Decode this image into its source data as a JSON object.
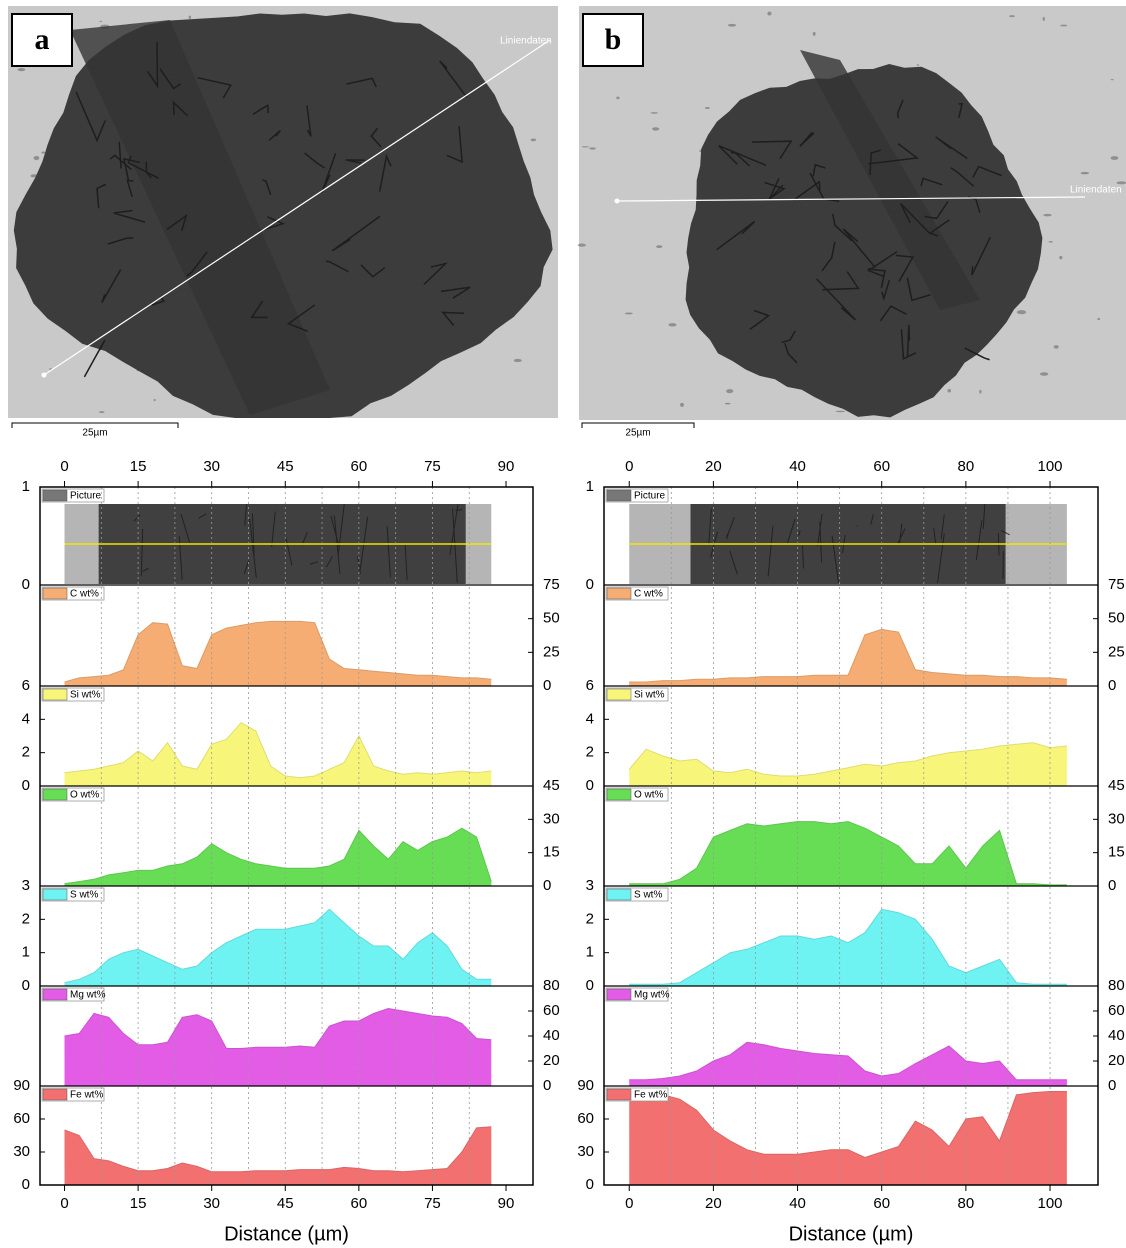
{
  "chart_data": [
    {
      "type": "area",
      "panel_label": "a",
      "line_label": "Liniendaten",
      "scale_bar": "25µm",
      "x_label": "Distance (µm)",
      "xlim": [
        -5,
        95.5
      ],
      "xticks": [
        0,
        15,
        30,
        45,
        60,
        75,
        90
      ],
      "xgrid": [
        7.5,
        15,
        22.5,
        30,
        37.5,
        45,
        52.5,
        60,
        67.5,
        75,
        82.5
      ],
      "x": [
        0,
        3,
        6,
        9,
        12,
        15,
        18,
        21,
        24,
        27,
        30,
        33,
        36,
        39,
        42,
        45,
        48,
        51,
        54,
        57,
        60,
        63,
        66,
        69,
        72,
        75,
        78,
        81,
        84,
        87
      ],
      "picture": {
        "name": "Picture",
        "ylim": [
          0,
          1
        ],
        "yticks": [
          0,
          1
        ]
      },
      "series": [
        {
          "name": "C wt%",
          "color": "#f5ad73",
          "axis": "y2",
          "ylim": [
            0,
            75
          ],
          "yticks": [
            0,
            25,
            50,
            75
          ],
          "values": [
            3,
            6,
            7,
            8,
            12,
            38,
            47,
            46,
            15,
            13,
            38,
            43,
            45,
            47,
            48,
            48,
            48,
            47,
            20,
            13,
            12,
            11,
            10,
            9,
            8,
            8,
            7,
            6,
            6,
            5
          ]
        },
        {
          "name": "Si wt%",
          "color": "#f8f67a",
          "ylim": [
            0,
            6
          ],
          "yticks": [
            0,
            2,
            4,
            6
          ],
          "values": [
            0.8,
            0.9,
            1.0,
            1.2,
            1.4,
            2.1,
            1.5,
            2.6,
            1.2,
            1.0,
            2.5,
            2.8,
            3.8,
            3.3,
            1.2,
            0.6,
            0.5,
            0.6,
            1.0,
            1.4,
            3.0,
            1.2,
            0.9,
            0.7,
            0.8,
            0.7,
            0.8,
            0.9,
            0.8,
            0.9
          ]
        },
        {
          "name": "O wt%",
          "color": "#66dd55",
          "axis": "y2",
          "ylim": [
            0,
            45
          ],
          "yticks": [
            0,
            15,
            30,
            45
          ],
          "values": [
            1,
            2,
            3,
            5,
            6,
            7,
            7,
            9,
            10,
            13,
            19,
            15,
            12,
            10,
            9,
            8,
            8,
            8,
            9,
            12,
            25,
            18,
            12,
            20,
            16,
            20,
            22,
            26,
            22,
            2
          ]
        },
        {
          "name": "S wt%",
          "color": "#6ef2f2",
          "ylim": [
            0,
            3
          ],
          "yticks": [
            0,
            1,
            2,
            3
          ],
          "values": [
            0.1,
            0.2,
            0.4,
            0.8,
            1.0,
            1.1,
            0.9,
            0.7,
            0.5,
            0.6,
            1.0,
            1.3,
            1.5,
            1.7,
            1.7,
            1.7,
            1.8,
            1.9,
            2.3,
            1.9,
            1.5,
            1.2,
            1.2,
            0.8,
            1.3,
            1.6,
            1.2,
            0.5,
            0.2,
            0.2
          ]
        },
        {
          "name": "Mg wt%",
          "color": "#e25ce6",
          "axis": "y2",
          "ylim": [
            0,
            80
          ],
          "yticks": [
            0,
            20,
            40,
            60,
            80
          ],
          "values": [
            40,
            42,
            58,
            55,
            42,
            33,
            33,
            35,
            55,
            57,
            52,
            30,
            30,
            31,
            31,
            31,
            32,
            31,
            48,
            52,
            52,
            58,
            62,
            60,
            58,
            56,
            55,
            50,
            38,
            37
          ]
        },
        {
          "name": "Fe wt%",
          "color": "#f27070",
          "ylim": [
            0,
            90
          ],
          "yticks": [
            0,
            30,
            60,
            90
          ],
          "values": [
            50,
            45,
            24,
            22,
            17,
            13,
            13,
            15,
            20,
            17,
            12,
            12,
            12,
            13,
            13,
            13,
            14,
            14,
            14,
            16,
            15,
            13,
            13,
            12,
            13,
            14,
            15,
            30,
            52,
            53
          ]
        }
      ]
    },
    {
      "type": "area",
      "panel_label": "b",
      "line_label": "Liniendaten",
      "scale_bar": "25µm",
      "x_label": "Distance (µm)",
      "xlim": [
        -6,
        111.4
      ],
      "xticks": [
        0,
        20,
        40,
        60,
        80,
        100
      ],
      "xgrid": [
        10,
        20,
        30,
        40,
        50,
        60,
        70,
        80,
        90,
        100
      ],
      "x": [
        0,
        4,
        8,
        12,
        16,
        20,
        24,
        28,
        32,
        36,
        40,
        44,
        48,
        52,
        56,
        60,
        64,
        68,
        72,
        76,
        80,
        84,
        88,
        92,
        96,
        100,
        104
      ],
      "picture": {
        "name": "Picture",
        "ylim": [
          0,
          1
        ],
        "yticks": [
          0,
          1
        ]
      },
      "series": [
        {
          "name": "C wt%",
          "color": "#f5ad73",
          "axis": "y2",
          "ylim": [
            0,
            75
          ],
          "yticks": [
            0,
            25,
            50,
            75
          ],
          "values": [
            3,
            3,
            4,
            4,
            5,
            5,
            6,
            6,
            7,
            7,
            7,
            8,
            8,
            8,
            38,
            42,
            40,
            12,
            10,
            9,
            8,
            8,
            7,
            7,
            6,
            6,
            5
          ]
        },
        {
          "name": "Si wt%",
          "color": "#f8f67a",
          "ylim": [
            0,
            6
          ],
          "yticks": [
            0,
            2,
            4,
            6
          ],
          "values": [
            1.0,
            2.2,
            1.8,
            1.5,
            1.6,
            0.9,
            0.8,
            1.0,
            0.7,
            0.6,
            0.6,
            0.7,
            0.9,
            1.1,
            1.3,
            1.2,
            1.4,
            1.5,
            1.8,
            2.0,
            2.1,
            2.2,
            2.4,
            2.5,
            2.6,
            2.3,
            2.4
          ]
        },
        {
          "name": "O wt%",
          "color": "#66dd55",
          "axis": "y2",
          "ylim": [
            0,
            45
          ],
          "yticks": [
            0,
            15,
            30,
            45
          ],
          "values": [
            1,
            1,
            1,
            3,
            8,
            22,
            25,
            28,
            27,
            28,
            29,
            29,
            28,
            29,
            26,
            22,
            18,
            10,
            10,
            18,
            8,
            18,
            25,
            1,
            1,
            0.5,
            0.5
          ]
        },
        {
          "name": "S wt%",
          "color": "#6ef2f2",
          "ylim": [
            0,
            3
          ],
          "yticks": [
            0,
            1,
            2,
            3
          ],
          "values": [
            0.05,
            0.05,
            0.05,
            0.1,
            0.4,
            0.7,
            1.0,
            1.1,
            1.3,
            1.5,
            1.5,
            1.4,
            1.5,
            1.3,
            1.6,
            2.3,
            2.2,
            2.0,
            1.4,
            0.6,
            0.4,
            0.6,
            0.8,
            0.1,
            0.05,
            0.05,
            0.05
          ]
        },
        {
          "name": "Mg wt%",
          "color": "#e25ce6",
          "axis": "y2",
          "ylim": [
            0,
            80
          ],
          "yticks": [
            0,
            20,
            40,
            60,
            80
          ],
          "values": [
            5,
            5,
            6,
            8,
            12,
            20,
            25,
            35,
            33,
            30,
            28,
            26,
            25,
            24,
            12,
            8,
            10,
            18,
            25,
            32,
            20,
            18,
            20,
            5,
            5,
            5,
            5
          ]
        },
        {
          "name": "Fe wt%",
          "color": "#f27070",
          "ylim": [
            0,
            90
          ],
          "yticks": [
            0,
            30,
            60,
            90
          ],
          "values": [
            82,
            82,
            82,
            78,
            68,
            50,
            40,
            32,
            28,
            28,
            28,
            30,
            32,
            32,
            25,
            30,
            35,
            58,
            50,
            35,
            60,
            62,
            40,
            82,
            84,
            85,
            85
          ]
        }
      ]
    }
  ]
}
